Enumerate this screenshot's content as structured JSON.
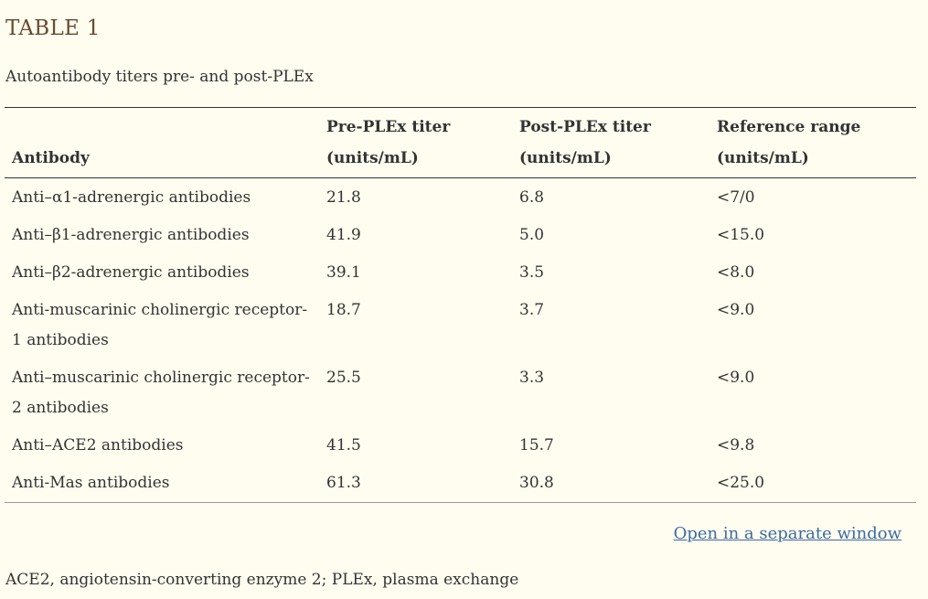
{
  "table": {
    "title": "TABLE 1",
    "caption": "Autoantibody titers pre- and post-PLEx",
    "headers": [
      {
        "line1": "",
        "line2": "Antibody"
      },
      {
        "line1": "Pre-PLEx titer",
        "line2": "(units/mL)"
      },
      {
        "line1": "Post-PLEx titer",
        "line2": "(units/mL)"
      },
      {
        "line1": "Reference range",
        "line2": "(units/mL)"
      }
    ],
    "rows": [
      [
        "Anti–α1-adrenergic antibodies",
        "21.8",
        "6.8",
        "<7/0"
      ],
      [
        "Anti–β1-adrenergic antibodies",
        "41.9",
        "5.0",
        "<15.0"
      ],
      [
        "Anti–β2-adrenergic antibodies",
        "39.1",
        "3.5",
        "<8.0"
      ],
      [
        "Anti-muscarinic cholinergic receptor-1 antibodies",
        "18.7",
        "3.7",
        "<9.0"
      ],
      [
        "Anti–muscarinic cholinergic receptor-2 antibodies",
        "25.5",
        "3.3",
        "<9.0"
      ],
      [
        "Anti–ACE2 antibodies",
        "41.5",
        "15.7",
        "<9.8"
      ],
      [
        "Anti-Mas antibodies",
        "61.3",
        "30.8",
        "<25.0"
      ]
    ]
  },
  "open_link": "Open in a separate window",
  "footnote": "ACE2, angiotensin-converting enzyme 2; PLEx, plasma exchange"
}
